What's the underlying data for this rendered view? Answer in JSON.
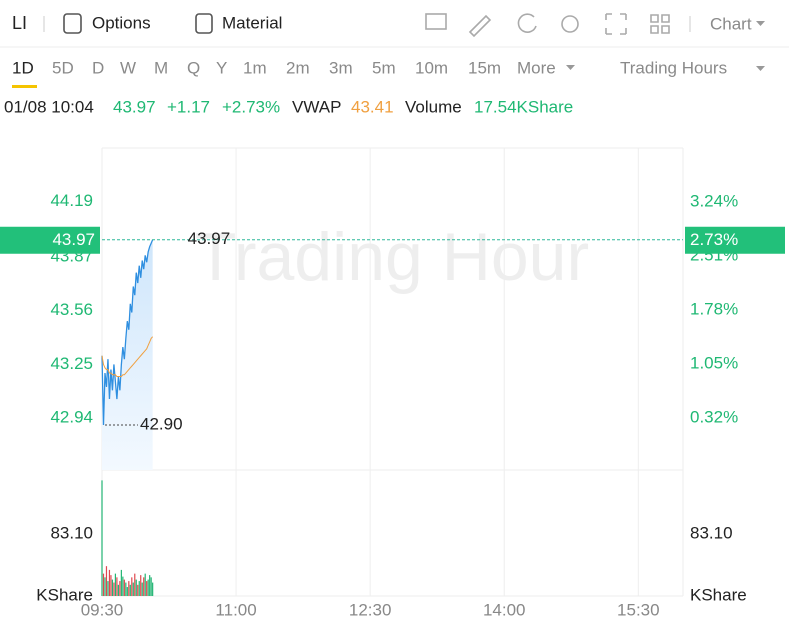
{
  "toolbar": {
    "symbol": "LI",
    "options": "Options",
    "material": "Material",
    "chart_menu": "Chart"
  },
  "tabs": {
    "items": [
      "1D",
      "5D",
      "D",
      "W",
      "M",
      "Q",
      "Y",
      "1m",
      "2m",
      "3m",
      "5m",
      "10m",
      "15m",
      "More"
    ],
    "selected": "1D",
    "session": "Trading Hours"
  },
  "info": {
    "datetime": "01/08 10:04",
    "price": "43.97",
    "change": "+1.17",
    "change_pct": "+2.73%",
    "vwap": "43.41",
    "volume": "17.54KShare"
  },
  "chart_data": [
    {
      "type": "line",
      "watermark": "Trading Hour",
      "x": [
        "09:30",
        "09:31",
        "09:32",
        "09:33",
        "09:34",
        "09:35",
        "09:36",
        "09:37",
        "09:38",
        "09:39",
        "09:40",
        "09:41",
        "09:42",
        "09:43",
        "09:44",
        "09:45",
        "09:46",
        "09:47",
        "09:48",
        "09:49",
        "09:50",
        "09:51",
        "09:52",
        "09:53",
        "09:54",
        "09:55",
        "09:56",
        "09:57",
        "09:58",
        "09:59",
        "10:00",
        "10:01",
        "10:02",
        "10:03",
        "10:04"
      ],
      "xlim": [
        "09:30",
        "16:00"
      ],
      "xticks": [
        "09:30",
        "11:00",
        "12:30",
        "14:00",
        "15:30"
      ],
      "series": [
        {
          "color": "#2f8fe0",
          "values": [
            43.3,
            42.9,
            43.2,
            43.12,
            43.28,
            43.05,
            43.22,
            43.1,
            43.25,
            43.15,
            43.05,
            43.18,
            43.1,
            43.25,
            43.35,
            43.28,
            43.4,
            43.5,
            43.45,
            43.6,
            43.55,
            43.7,
            43.65,
            43.78,
            43.72,
            43.82,
            43.75,
            43.85,
            43.8,
            43.88,
            43.84,
            43.9,
            43.93,
            43.95,
            43.97
          ]
        },
        {
          "name": "VWAP",
          "color": "#f0a040",
          "values": [
            43.3,
            43.25,
            43.23,
            43.22,
            43.22,
            43.2,
            43.2,
            43.19,
            43.19,
            43.19,
            43.18,
            43.18,
            43.18,
            43.18,
            43.19,
            43.19,
            43.2,
            43.21,
            43.22,
            43.23,
            43.24,
            43.25,
            43.26,
            43.27,
            43.28,
            43.29,
            43.3,
            43.31,
            43.32,
            43.33,
            43.34,
            43.36,
            43.38,
            43.4,
            43.41
          ]
        }
      ],
      "ylim": [
        42.64,
        44.5
      ],
      "yticks": [
        44.19,
        43.87,
        43.56,
        43.25,
        42.94
      ],
      "y2lim": [
        -0.38,
        3.97
      ],
      "y2ticks": [
        {
          "value": 3.24,
          "label": "3.24%"
        },
        {
          "value": 2.51,
          "label": "2.51%"
        },
        {
          "value": 1.78,
          "label": "1.78%"
        },
        {
          "value": 1.05,
          "label": "1.05%"
        },
        {
          "value": 0.32,
          "label": "0.32%"
        }
      ],
      "current": {
        "price": 43.97,
        "pct": {
          "value": 2.73,
          "label": "2.73%"
        }
      },
      "high": 43.97,
      "low": {
        "value": 42.9,
        "label": "42.90"
      },
      "grid": true
    },
    {
      "type": "bar",
      "series": [
        {
          "name": "Volume",
          "values": [
            155,
            30,
            25,
            40,
            20,
            35,
            28,
            22,
            18,
            30,
            25,
            15,
            20,
            35,
            26,
            22,
            18,
            12,
            20,
            15,
            25,
            18,
            30,
            22,
            15,
            20,
            28,
            18,
            25,
            30,
            20,
            22,
            28,
            25,
            18
          ],
          "colors": [
            "#22b573",
            "#e0484f",
            "#22b573",
            "#e0484f",
            "#22b573",
            "#e0484f",
            "#e0484f",
            "#22b573",
            "#e0484f",
            "#22b573",
            "#e0484f",
            "#22b573",
            "#e0484f",
            "#22b573",
            "#22b573",
            "#e0484f",
            "#22b573",
            "#22b573",
            "#e0484f",
            "#22b573",
            "#e0484f",
            "#22b573",
            "#e0484f",
            "#22b573",
            "#e0484f",
            "#22b573",
            "#e0484f",
            "#22b573",
            "#e0484f",
            "#22b573",
            "#e0484f",
            "#22b573",
            "#22b573",
            "#22b573",
            "#22b573"
          ]
        }
      ],
      "ylim": [
        0,
        168.9
      ],
      "yticks": [
        {
          "value": 83.1,
          "label": "83.10"
        }
      ],
      "unit": "KShare"
    }
  ]
}
